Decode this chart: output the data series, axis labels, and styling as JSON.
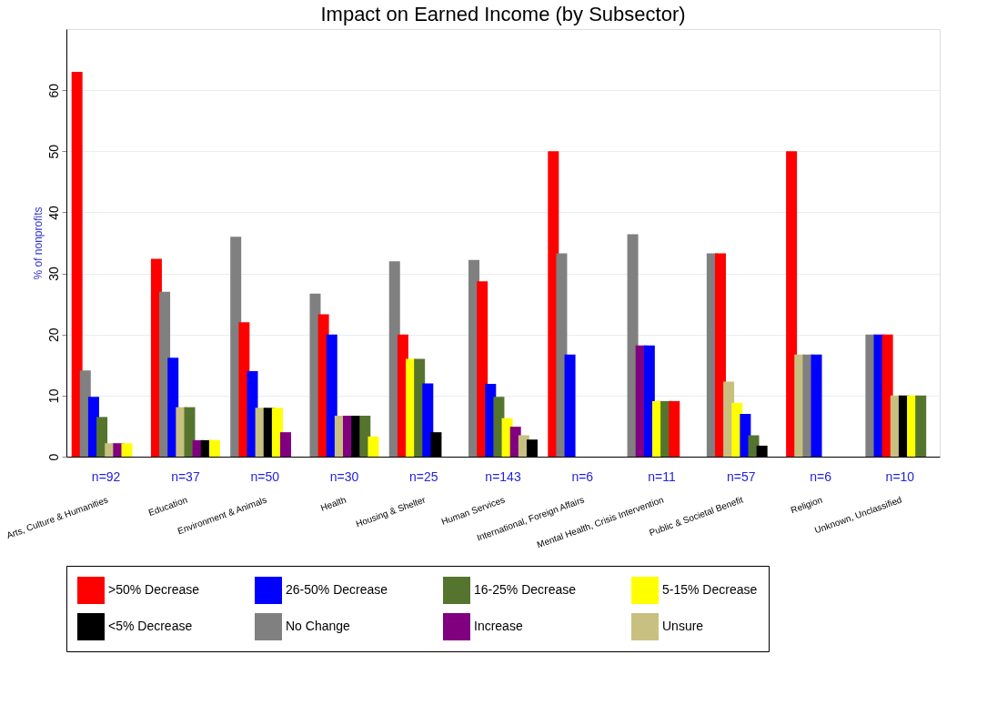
{
  "chart_data": {
    "type": "bar",
    "title": "Impact on Earned Income (by Subsector)",
    "ylabel": "% of nonprofits",
    "categories": [
      "Arts, Culture & Humanities",
      "Education",
      "Environment & Animals",
      "Health",
      "Housing & Shelter",
      "Human Services",
      "International, Foreign Affairs",
      "Mental Health, Crisis Intervention",
      "Public & Societal Benefit",
      "Religion",
      "Unknown, Unclassified"
    ],
    "series": [
      {
        "name": ">50% Decrease",
        "color": "#ff0000",
        "values": [
          63.0,
          32.4,
          22.0,
          23.3,
          20.0,
          28.7,
          50.0,
          9.1,
          33.3,
          50.0,
          20.0
        ]
      },
      {
        "name": "26-50% Decrease",
        "color": "#0000ff",
        "values": [
          9.8,
          16.2,
          14.0,
          20.0,
          12.0,
          11.9,
          16.7,
          18.2,
          7.0,
          16.7,
          20.0
        ]
      },
      {
        "name": "16-25% Decrease",
        "color": "#55752f",
        "values": [
          6.5,
          8.1,
          null,
          6.7,
          16.0,
          9.8,
          null,
          9.1,
          3.5,
          null,
          10.0
        ]
      },
      {
        "name": "5-15% Decrease",
        "color": "#ffff00",
        "values": [
          2.2,
          2.7,
          8.0,
          3.3,
          16.0,
          6.3,
          null,
          9.1,
          8.8,
          null,
          10.0
        ]
      },
      {
        "name": "<5% Decrease",
        "color": "#000000",
        "values": [
          null,
          2.7,
          8.0,
          6.7,
          4.0,
          2.8,
          null,
          null,
          1.8,
          null,
          10.0
        ]
      },
      {
        "name": "No Change",
        "color": "#808080",
        "values": [
          14.1,
          27.0,
          36.0,
          26.7,
          32.0,
          32.2,
          33.3,
          36.4,
          33.3,
          16.7,
          20.0
        ]
      },
      {
        "name": "Increase",
        "color": "#800080",
        "values": [
          2.2,
          2.7,
          4.0,
          6.7,
          null,
          4.9,
          null,
          18.2,
          null,
          null,
          null
        ]
      },
      {
        "name": "Unsure",
        "color": "#c8c080",
        "values": [
          2.2,
          8.1,
          8.0,
          6.7,
          null,
          3.5,
          null,
          null,
          12.3,
          16.7,
          10.0
        ]
      }
    ],
    "annotations": [
      "n=92",
      "n=37",
      "n=50",
      "n=30",
      "n=25",
      "n=143",
      "n=6",
      "n=11",
      "n=57",
      "n=6",
      "n=10"
    ],
    "ylim": [
      0,
      70
    ],
    "yticks": [
      0,
      10,
      20,
      30,
      40,
      50,
      60
    ],
    "grid": "y",
    "legend": "bottom"
  }
}
